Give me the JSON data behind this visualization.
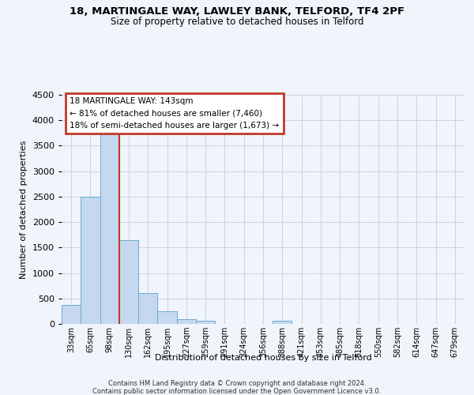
{
  "title": "18, MARTINGALE WAY, LAWLEY BANK, TELFORD, TF4 2PF",
  "subtitle": "Size of property relative to detached houses in Telford",
  "xlabel": "Distribution of detached houses by size in Telford",
  "ylabel": "Number of detached properties",
  "categories": [
    "33sqm",
    "65sqm",
    "98sqm",
    "130sqm",
    "162sqm",
    "195sqm",
    "227sqm",
    "259sqm",
    "291sqm",
    "324sqm",
    "356sqm",
    "388sqm",
    "421sqm",
    "453sqm",
    "485sqm",
    "518sqm",
    "550sqm",
    "582sqm",
    "614sqm",
    "647sqm",
    "679sqm"
  ],
  "values": [
    380,
    2500,
    3750,
    1650,
    600,
    245,
    95,
    55,
    0,
    0,
    0,
    55,
    0,
    0,
    0,
    0,
    0,
    0,
    0,
    0,
    0
  ],
  "bar_color": "#c5d8f0",
  "bar_edge_color": "#6aabd2",
  "vline_x_idx": 3,
  "vline_color": "#c0392b",
  "annotation_title": "18 MARTINGALE WAY: 143sqm",
  "annotation_line1": "← 81% of detached houses are smaller (7,460)",
  "annotation_line2": "18% of semi-detached houses are larger (1,673) →",
  "annotation_box_edgecolor": "#c0392b",
  "ylim": [
    0,
    4500
  ],
  "yticks": [
    0,
    500,
    1000,
    1500,
    2000,
    2500,
    3000,
    3500,
    4000,
    4500
  ],
  "footnote1": "Contains HM Land Registry data © Crown copyright and database right 2024.",
  "footnote2": "Contains public sector information licensed under the Open Government Licence v3.0.",
  "bg_color": "#f0f4fb",
  "grid_color": "#c8d4e8"
}
